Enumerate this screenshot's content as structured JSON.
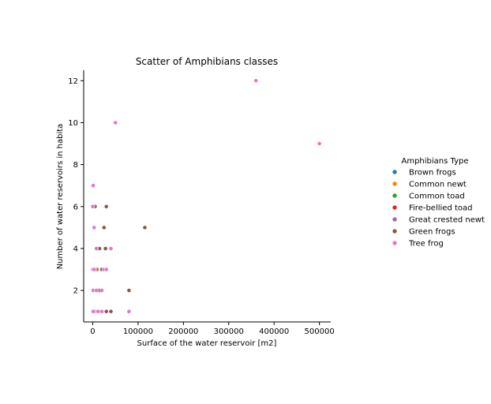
{
  "chart_data": {
    "type": "scatter",
    "title": "Scatter of Amphibians classes",
    "xlabel": "Surface of the water reservoir [m2]",
    "ylabel": "Number of water reservoirs in habita",
    "xlim": [
      -20000,
      525000
    ],
    "ylim": [
      0.5,
      12.5
    ],
    "xticks": [
      0,
      100000,
      200000,
      300000,
      400000,
      500000
    ],
    "yticks": [
      2,
      4,
      6,
      8,
      10,
      12
    ],
    "grid": false,
    "legend": {
      "title": "Amphibians Type",
      "placement": "right"
    },
    "series": [
      {
        "name": "Brown frogs",
        "color": "#1f77b4",
        "points": [
          [
            500,
            1
          ],
          [
            3000,
            1
          ],
          [
            8000,
            1
          ],
          [
            1000,
            2
          ],
          [
            4000,
            3
          ]
        ]
      },
      {
        "name": "Common newt",
        "color": "#ff7f0e",
        "points": [
          [
            1500,
            1
          ],
          [
            5000,
            1
          ],
          [
            2000,
            2
          ],
          [
            6000,
            3
          ]
        ]
      },
      {
        "name": "Common toad",
        "color": "#2ca02c",
        "points": [
          [
            0,
            1
          ],
          [
            2000,
            1
          ],
          [
            6000,
            1
          ]
        ]
      },
      {
        "name": "Fire-bellied toad",
        "color": "#d62728",
        "points": [
          [
            7000,
            1
          ],
          [
            12000,
            2
          ],
          [
            9000,
            3
          ]
        ]
      },
      {
        "name": "Great crested newt",
        "color": "#9467bd",
        "points": [
          [
            10000,
            1
          ],
          [
            14000,
            2
          ]
        ]
      },
      {
        "name": "Green frogs",
        "color": "#8c564b",
        "points": [
          [
            500,
            1
          ],
          [
            30000,
            1
          ],
          [
            40000,
            1
          ],
          [
            80000,
            2
          ],
          [
            15000,
            2
          ],
          [
            5000,
            3
          ],
          [
            20000,
            3
          ],
          [
            10000,
            4
          ],
          [
            15000,
            4
          ],
          [
            28000,
            4
          ],
          [
            25000,
            5
          ],
          [
            115000,
            5
          ],
          [
            5000,
            6
          ],
          [
            30000,
            6
          ]
        ]
      },
      {
        "name": "Tree frog",
        "color": "#e377c2",
        "points": [
          [
            1000,
            1
          ],
          [
            12000,
            1
          ],
          [
            20000,
            1
          ],
          [
            80000,
            1
          ],
          [
            1000,
            2
          ],
          [
            8000,
            2
          ],
          [
            20000,
            2
          ],
          [
            0,
            3
          ],
          [
            3000,
            3
          ],
          [
            25000,
            3
          ],
          [
            30000,
            3
          ],
          [
            8000,
            4
          ],
          [
            40000,
            4
          ],
          [
            3000,
            5
          ],
          [
            0,
            6
          ],
          [
            1000,
            7
          ],
          [
            50000,
            10
          ],
          [
            360000,
            12
          ],
          [
            500000,
            9
          ]
        ]
      }
    ]
  }
}
